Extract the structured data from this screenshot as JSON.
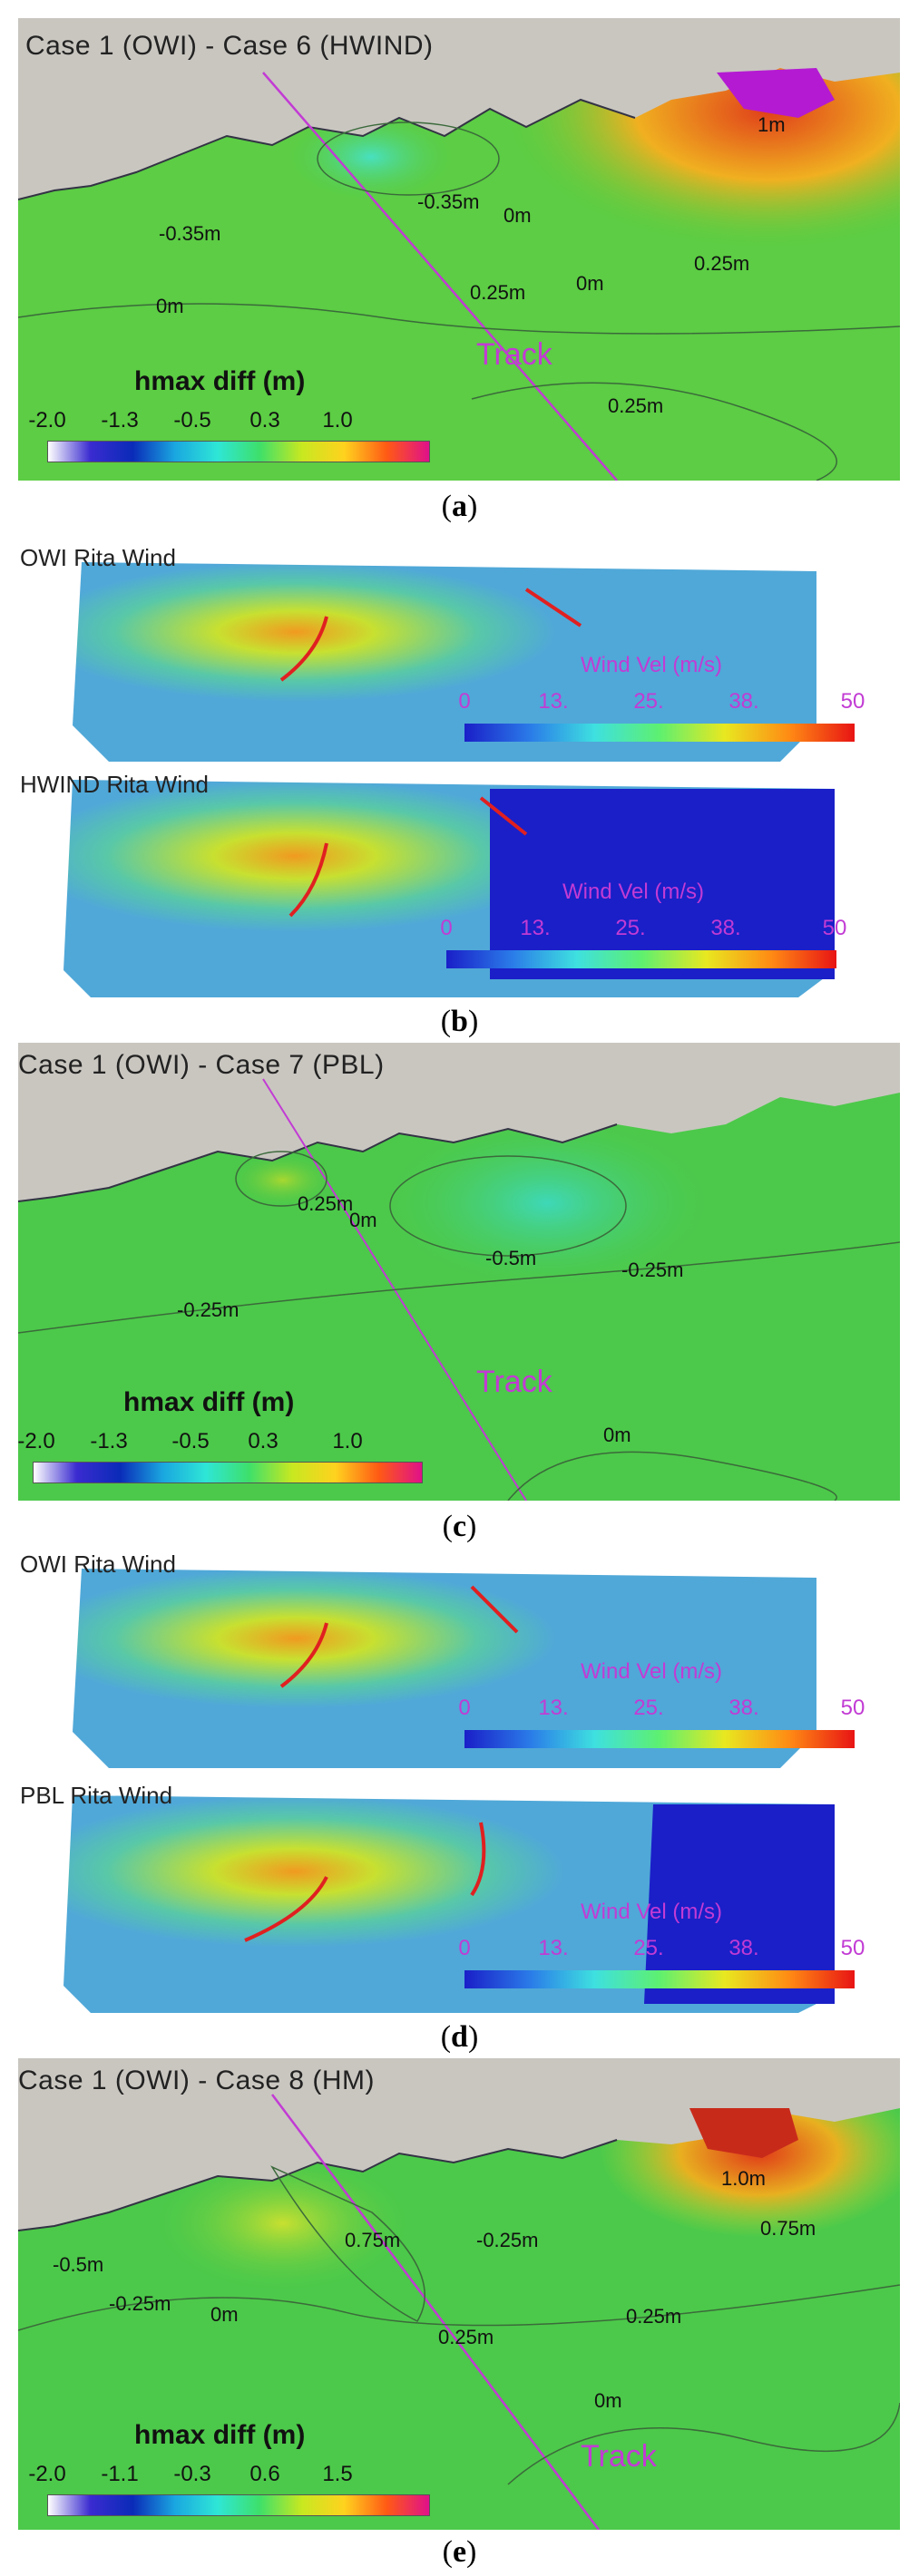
{
  "figure": {
    "panel_a": {
      "title": "Case 1 (OWI) - Case 6 (HWIND)",
      "caption_letter": "a",
      "contour_labels": [
        "-0.35m",
        "0m",
        "-0.35m",
        "0m",
        "0.25m",
        "0m",
        "0.25m",
        "1m",
        "0.25m"
      ],
      "track_label": "Track",
      "colorbar": {
        "title": "hmax diff (m)",
        "ticks": [
          "-2.0",
          "-1.3",
          "-0.5",
          "0.3",
          "1.0"
        ]
      }
    },
    "panel_b": {
      "caption_letter": "b",
      "top_title": "OWI Rita Wind",
      "bottom_title": "HWIND Rita Wind",
      "colorbar_top": {
        "title": "Wind Vel (m/s)",
        "ticks": [
          "0",
          "13.",
          "25.",
          "38.",
          "50"
        ]
      },
      "colorbar_bottom": {
        "title": "Wind Vel (m/s)",
        "ticks": [
          "0",
          "13.",
          "25.",
          "38.",
          "50"
        ]
      }
    },
    "panel_c": {
      "title": "Case 1 (OWI) - Case 7 (PBL)",
      "caption_letter": "c",
      "contour_labels": [
        "0.25m",
        "0m",
        "-0.5m",
        "-0.25m",
        "-0.25m",
        "0m"
      ],
      "track_label": "Track",
      "colorbar": {
        "title": "hmax diff (m)",
        "ticks": [
          "-2.0",
          "-1.3",
          "-0.5",
          "0.3",
          "1.0"
        ]
      }
    },
    "panel_d": {
      "caption_letter": "d",
      "top_title": "OWI Rita Wind",
      "bottom_title": "PBL Rita Wind",
      "colorbar_top": {
        "title": "Wind Vel (m/s)",
        "ticks": [
          "0",
          "13.",
          "25.",
          "38.",
          "50"
        ]
      },
      "colorbar_bottom": {
        "title": "Wind Vel (m/s)",
        "ticks": [
          "0",
          "13.",
          "25.",
          "38.",
          "50"
        ]
      }
    },
    "panel_e": {
      "title": "Case 1 (OWI) - Case 8 (HM)",
      "caption_letter": "e",
      "contour_labels": [
        "1.0m",
        "0.75m",
        "-0.25m",
        "0.75m",
        "-0.5m",
        "-0.25m",
        "0m",
        "0.25m",
        "0.25m",
        "0m"
      ],
      "track_label": "Track",
      "colorbar": {
        "title": "hmax diff (m)",
        "ticks": [
          "-2.0",
          "-1.1",
          "-0.3",
          "0.6",
          "1.5"
        ]
      }
    }
  },
  "colors": {
    "land": "#c9c6c0",
    "ocean_green": "#4cc94a",
    "track_line": "#c23bd4",
    "diff_scale": [
      "#ffffff",
      "#3a2bd0",
      "#0a2bb8",
      "#1aa7e0",
      "#2ee6d6",
      "#3ee06a",
      "#c8e820",
      "#ffd21e",
      "#ff5a14",
      "#e0108a"
    ],
    "wind_scale": [
      "#1a1fc8",
      "#2a7ae8",
      "#3ee0e0",
      "#5ef070",
      "#e8e820",
      "#ff8a14",
      "#e81414"
    ],
    "arrow": "#e02020"
  }
}
